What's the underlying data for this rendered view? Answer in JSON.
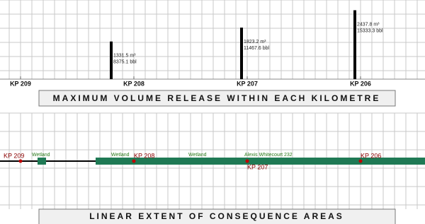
{
  "top": {
    "kp_labels": [
      "KP 209",
      "KP 208",
      "KP 207",
      "KP 206"
    ],
    "releases": [
      {
        "volume_m3": 1331.5,
        "label_m3": "1331.5 m³",
        "label_bbl": "8375.1 bbl"
      },
      {
        "volume_m3": 1823.2,
        "label_m3": "1823.2 m³",
        "label_bbl": "11467.6 bbl"
      },
      {
        "volume_m3": 2437.8,
        "label_m3": "2437.8 m³",
        "label_bbl": "15333.3 bbl"
      }
    ],
    "title": "MAXIMUM VOLUME RELEASE WITHIN EACH KILOMETRE"
  },
  "bottom": {
    "kp_labels": [
      "KP 209",
      "KP 208",
      "KP 207",
      "KP 206"
    ],
    "areas": [
      "Wetland",
      "Wetland",
      "Wetland",
      "Alexis Whitecourt 232"
    ],
    "title": "LINEAR EXTENT OF CONSEQUENCE AREAS"
  }
}
